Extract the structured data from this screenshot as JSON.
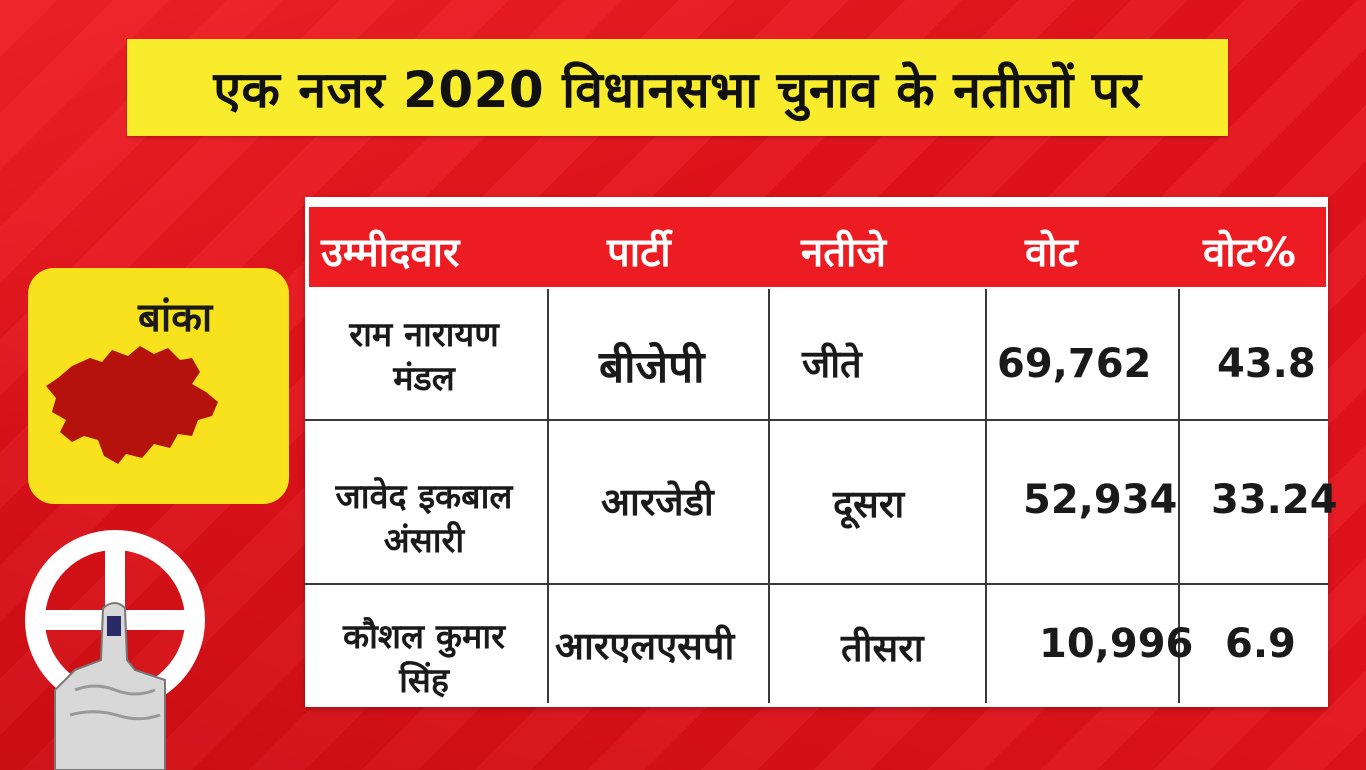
{
  "title": "एक नजर 2020 विधानसभा चुनाव के नतीजों पर",
  "district": {
    "name": "बांका",
    "map_icon": "district-map-icon",
    "map_color": "#b5120e"
  },
  "emblem_icon": "ballot-finger-swastika-icon",
  "colors": {
    "background": "#e4131b",
    "banner": "#f8ec2c",
    "card": "#f8e21e",
    "table_header": "#ec1c22"
  },
  "table": {
    "headers": [
      "उम्मीदवार",
      "पार्टी",
      "नतीजे",
      "वोट",
      "वोट%"
    ],
    "rows": [
      {
        "candidate": [
          "राम नारायण",
          "मंडल"
        ],
        "party": "बीजेपी",
        "result": "जीते",
        "votes": "69,762",
        "vote_pct": "43.8"
      },
      {
        "candidate": [
          "जावेद इकबाल",
          "अंसारी"
        ],
        "party": "आरजेडी",
        "result": "दूसरा",
        "votes": "52,934",
        "vote_pct": "33.24"
      },
      {
        "candidate": [
          "कौशल कुमार",
          "सिंह"
        ],
        "party": "आरएलएसपी",
        "result": "तीसरा",
        "votes": "10,996",
        "vote_pct": "6.9"
      }
    ]
  }
}
